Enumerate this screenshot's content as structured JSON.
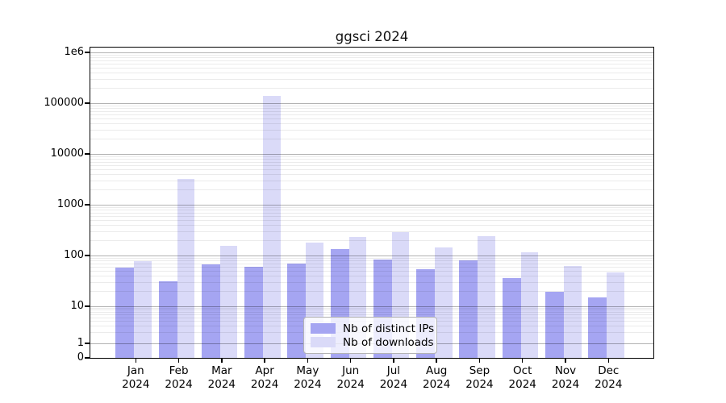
{
  "title": "ggsci 2024",
  "colors": {
    "distinct_ips_bar": "#a5a5f2",
    "downloads_bar": "#dadaf8",
    "grid_major": "rgba(0,0,0,0.30)",
    "grid_minor": "rgba(0,0,0,0.08)",
    "axis": "#000000",
    "background": "#ffffff"
  },
  "chart_data": {
    "type": "bar",
    "title": "ggsci 2024",
    "yscale": "log",
    "grid": "horizontal, log major + minor, drawn over bars",
    "legend_position": "inside bottom-center",
    "year_label": "2024",
    "categories": [
      "Jan",
      "Feb",
      "Mar",
      "Apr",
      "May",
      "Jun",
      "Jul",
      "Aug",
      "Sep",
      "Oct",
      "Nov",
      "Dec"
    ],
    "series": [
      {
        "name": "Nb of distinct IPs",
        "color": "#a5a5f2",
        "values": [
          58,
          31,
          67,
          59,
          70,
          132,
          84,
          53,
          79,
          36,
          19,
          15
        ]
      },
      {
        "name": "Nb of downloads",
        "color": "#dadaf8",
        "values": [
          78,
          3200,
          153,
          140000,
          180,
          235,
          285,
          145,
          238,
          114,
          63,
          46
        ]
      }
    ],
    "y_ticks": [
      {
        "label": "1e6",
        "value": 1000000
      },
      {
        "label": "100000",
        "value": 100000
      },
      {
        "label": "10000",
        "value": 10000
      },
      {
        "label": "1000",
        "value": 1000
      },
      {
        "label": "100",
        "value": 100
      },
      {
        "label": "10",
        "value": 10
      },
      {
        "label": "1",
        "value": 1
      },
      {
        "label": "0",
        "value": 0
      }
    ],
    "ylim": [
      0,
      1000000
    ]
  }
}
